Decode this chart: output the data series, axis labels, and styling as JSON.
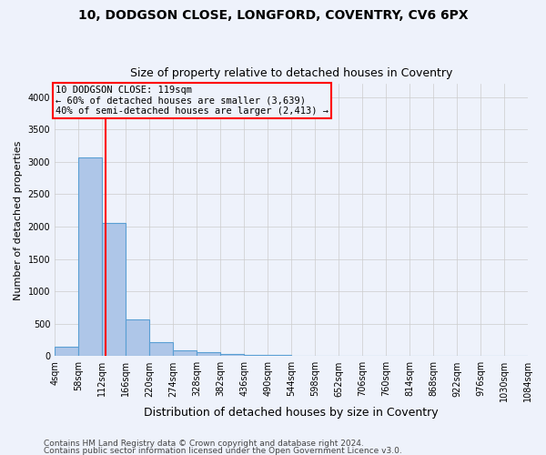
{
  "title_line1": "10, DODGSON CLOSE, LONGFORD, COVENTRY, CV6 6PX",
  "title_line2": "Size of property relative to detached houses in Coventry",
  "xlabel": "Distribution of detached houses by size in Coventry",
  "ylabel": "Number of detached properties",
  "footer_line1": "Contains HM Land Registry data © Crown copyright and database right 2024.",
  "footer_line2": "Contains public sector information licensed under the Open Government Licence v3.0.",
  "bin_edges": [
    4,
    58,
    112,
    166,
    220,
    274,
    328,
    382,
    436,
    490,
    544,
    598,
    652,
    706,
    760,
    814,
    868,
    922,
    976,
    1030,
    1084
  ],
  "bar_heights": [
    150,
    3060,
    2060,
    560,
    220,
    90,
    55,
    35,
    20,
    15,
    10,
    8,
    5,
    5,
    4,
    3,
    3,
    2,
    2,
    2
  ],
  "bar_color": "#aec6e8",
  "bar_edge_color": "#5a9fd4",
  "property_size": 119,
  "property_label": "10 DODGSON CLOSE: 119sqm",
  "annotation_line2": "← 60% of detached houses are smaller (3,639)",
  "annotation_line3": "40% of semi-detached houses are larger (2,413) →",
  "vline_color": "red",
  "ylim": [
    0,
    4200
  ],
  "yticks": [
    0,
    500,
    1000,
    1500,
    2000,
    2500,
    3000,
    3500,
    4000
  ],
  "background_color": "#eef2fb",
  "grid_color": "#cccccc",
  "title_fontsize": 10,
  "subtitle_fontsize": 9,
  "ylabel_fontsize": 8,
  "xlabel_fontsize": 9,
  "tick_fontsize": 7,
  "footer_fontsize": 6.5
}
